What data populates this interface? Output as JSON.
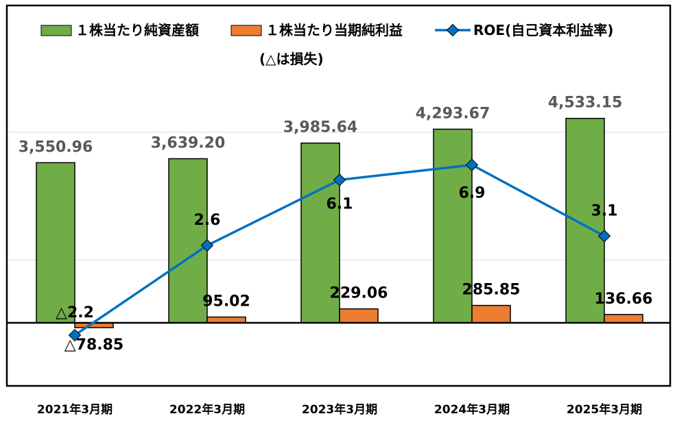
{
  "colors": {
    "nav_bar": "#70AD47",
    "eps_bar": "#ED7D31",
    "roe_line": "#0070C0",
    "bar_stroke": "#000000",
    "gridline": "#D9D9D9",
    "frame": "#000000"
  },
  "legend": {
    "nav_label": "１株当たり純資産額",
    "eps_label": "１株当たり当期純利益",
    "eps_note": "(△は損失)",
    "roe_label": "ROE(自己資本利益率)"
  },
  "chart_data": {
    "type": "bar",
    "categories": [
      "2021年3月期",
      "2022年3月期",
      "2023年3月期",
      "2024年3月期",
      "2025年3月期"
    ],
    "series": [
      {
        "name": "１株当たり純資産額",
        "type": "bar",
        "values": [
          3550.96,
          3639.2,
          3985.64,
          4293.67,
          4533.15
        ],
        "labels": [
          "3,550.96",
          "3,639.20",
          "3,985.64",
          "4,293.67",
          "4,533.15"
        ]
      },
      {
        "name": "１株当たり当期純利益",
        "type": "bar",
        "values": [
          -78.85,
          95.02,
          229.06,
          285.85,
          136.66
        ],
        "labels": [
          "△78.85",
          "95.02",
          "229.06",
          "285.85",
          "136.66"
        ]
      },
      {
        "name": "ROE(自己資本利益率)",
        "type": "line",
        "values": [
          -2.2,
          2.6,
          6.1,
          6.9,
          3.1
        ],
        "labels": [
          "△2.2",
          "2.6",
          "6.1",
          "6.9",
          "3.1"
        ]
      }
    ],
    "legend_position": "top",
    "gridlines": true
  }
}
